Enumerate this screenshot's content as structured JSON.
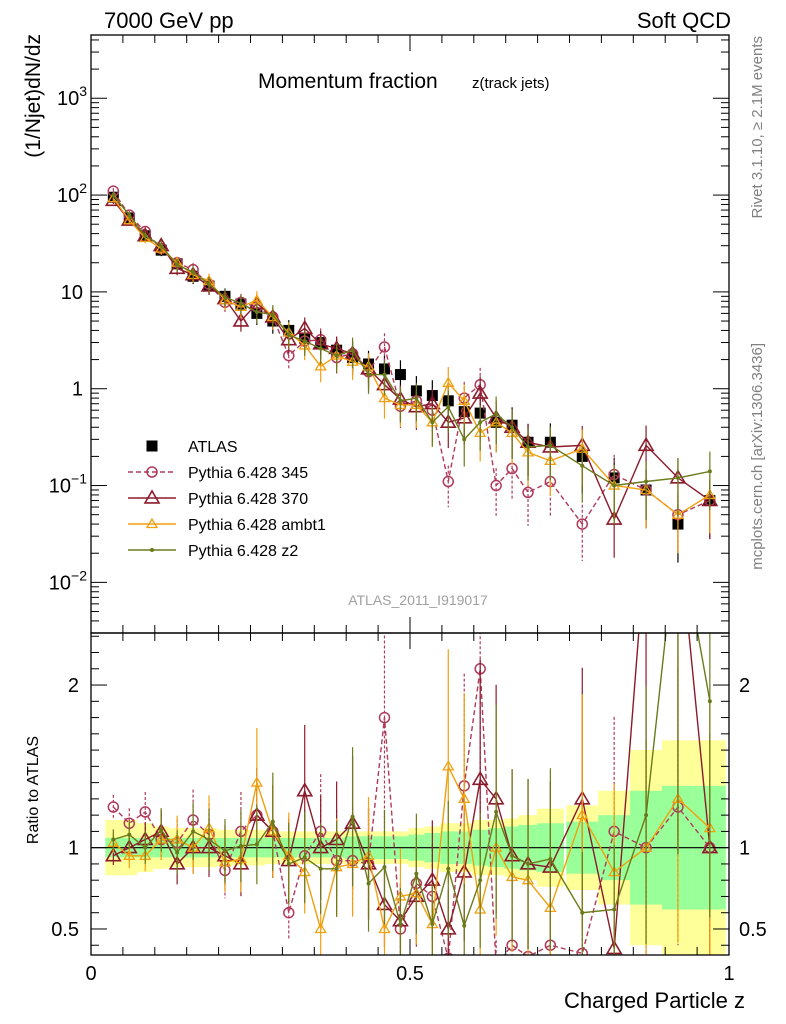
{
  "header": {
    "left": "7000 GeV pp",
    "right": "Soft QCD"
  },
  "side": {
    "rivet": "Rivet 3.1.10, ≥ 2.1M events",
    "mcplots": "mcplots.cern.ch [arXiv:1306.3436]"
  },
  "chart_data": [
    {
      "type": "scatter",
      "panel": "main",
      "title": "Momentum fraction",
      "title_sub": "z(track jets)",
      "ylabel": "(1/Njet)dN/dz",
      "xlabel": "",
      "yscale": "log",
      "xlim": [
        0,
        1
      ],
      "ylim": [
        0.003,
        4500
      ],
      "y_ticks": [
        {
          "value": 0.01,
          "label_base": "10",
          "label_exp": "−2"
        },
        {
          "value": 0.1,
          "label_base": "10",
          "label_exp": "−1"
        },
        {
          "value": 1,
          "label_base": "1",
          "label_exp": ""
        },
        {
          "value": 10,
          "label_base": "10",
          "label_exp": ""
        },
        {
          "value": 100,
          "label_base": "10",
          "label_exp": "2"
        },
        {
          "value": 1000,
          "label_base": "10",
          "label_exp": "3"
        }
      ],
      "watermark": "ATLAS_2011_I919017",
      "legend_position": "left-center",
      "x": [
        0.035,
        0.06,
        0.085,
        0.11,
        0.135,
        0.16,
        0.185,
        0.21,
        0.235,
        0.26,
        0.285,
        0.31,
        0.335,
        0.36,
        0.385,
        0.41,
        0.435,
        0.46,
        0.485,
        0.51,
        0.535,
        0.56,
        0.585,
        0.61,
        0.635,
        0.66,
        0.685,
        0.72,
        0.77,
        0.82,
        0.87,
        0.92,
        0.97
      ],
      "series": [
        {
          "name": "ATLAS",
          "color": "#000000",
          "marker": "square",
          "values": [
            95,
            58,
            38,
            27,
            19.5,
            14.5,
            11.5,
            9,
            7.5,
            6,
            5,
            4,
            3.3,
            3,
            2.5,
            2.1,
            1.8,
            1.6,
            1.4,
            0.95,
            0.85,
            0.75,
            0.58,
            0.56,
            0.45,
            0.42,
            0.28,
            0.28,
            0.2,
            0.12,
            0.09,
            0.04,
            0.07
          ]
        },
        {
          "name": "Pythia 6.428 345",
          "color": "#B03A5A",
          "marker": "circle",
          "dash": "5,3",
          "values": [
            110,
            62,
            42,
            28,
            20,
            17,
            12,
            7.8,
            7.8,
            7,
            5.5,
            2.2,
            3.1,
            3.2,
            2.1,
            2.3,
            1.5,
            2.7,
            0.66,
            0.75,
            0.6,
            0.11,
            0.8,
            1.1,
            0.1,
            0.15,
            0.085,
            0.11,
            0.04,
            0.13,
            0.09,
            0.05,
            0.07
          ]
        },
        {
          "name": "Pythia 6.428 370",
          "color": "#8B1A2B",
          "marker": "triangle",
          "values": [
            88,
            55,
            38,
            30,
            17.5,
            15,
            11.5,
            8.5,
            5,
            7.6,
            5.5,
            3.2,
            4.2,
            2.9,
            2.6,
            2.3,
            1.6,
            1.1,
            0.78,
            0.65,
            0.7,
            0.45,
            0.5,
            0.9,
            0.5,
            0.4,
            0.28,
            0.25,
            0.26,
            0.045,
            0.26,
            0.12,
            0.07
          ]
        },
        {
          "name": "Pythia 6.428 ambt1",
          "color": "#F0A010",
          "marker": "triangle-small",
          "values": [
            93,
            55,
            36,
            28,
            20,
            15,
            13,
            8.2,
            7,
            8.2,
            5.5,
            3.8,
            2.8,
            1.7,
            2.2,
            1.9,
            1.7,
            0.8,
            0.68,
            0.68,
            0.45,
            1.15,
            0.75,
            0.35,
            0.45,
            0.35,
            0.22,
            0.18,
            0.24,
            0.1,
            0.09,
            0.05,
            0.08
          ]
        },
        {
          "name": "Pythia 6.428 z2",
          "color": "#6B7A1A",
          "marker": "dot",
          "values": [
            100,
            62,
            38,
            30,
            19,
            16,
            12,
            8.8,
            7.6,
            6.2,
            5.8,
            3.6,
            3.1,
            2.6,
            2.2,
            2.5,
            1.4,
            1.4,
            0.75,
            0.8,
            0.45,
            0.65,
            0.3,
            0.45,
            0.55,
            0.4,
            0.25,
            0.26,
            0.16,
            0.1,
            0.11,
            0.12,
            0.14
          ]
        }
      ]
    },
    {
      "type": "line",
      "panel": "ratio",
      "ylabel": "Ratio to ATLAS",
      "xlabel": "Charged Particle z",
      "xlim": [
        0,
        1
      ],
      "ylim": [
        0.34,
        2.32
      ],
      "x_ticks": [
        {
          "value": 0,
          "label": "0"
        },
        {
          "value": 0.5,
          "label": "0.5"
        },
        {
          "value": 1,
          "label": "1"
        }
      ],
      "y_ticks": [
        {
          "value": 0.5,
          "label": "0.5"
        },
        {
          "value": 1,
          "label": "1"
        },
        {
          "value": 2,
          "label": "2"
        }
      ],
      "uncertainty_bands": {
        "stat_color": "#99FF99",
        "total_color": "#FFFF99",
        "green_half_width": [
          0.06,
          0.06,
          0.06,
          0.06,
          0.06,
          0.06,
          0.06,
          0.06,
          0.06,
          0.06,
          0.06,
          0.06,
          0.06,
          0.06,
          0.06,
          0.07,
          0.07,
          0.07,
          0.07,
          0.08,
          0.09,
          0.1,
          0.1,
          0.11,
          0.12,
          0.13,
          0.14,
          0.15,
          0.16,
          0.2,
          0.35,
          0.38,
          0.38
        ],
        "yellow_half_width": [
          0.17,
          0.17,
          0.15,
          0.13,
          0.12,
          0.12,
          0.12,
          0.11,
          0.11,
          0.11,
          0.1,
          0.1,
          0.1,
          0.1,
          0.1,
          0.1,
          0.1,
          0.1,
          0.1,
          0.12,
          0.13,
          0.15,
          0.15,
          0.17,
          0.17,
          0.18,
          0.2,
          0.24,
          0.26,
          0.35,
          0.6,
          0.66,
          0.66
        ]
      },
      "series": [
        {
          "name": "Pythia 6.428 345",
          "color": "#B03A5A",
          "marker": "circle",
          "dash": "5,3",
          "values": [
            1.25,
            1.15,
            1.22,
            1.05,
            1.03,
            1.17,
            1.08,
            0.86,
            1.1,
            1.2,
            1.1,
            0.6,
            0.95,
            1.1,
            0.92,
            0.92,
            0.9,
            1.8,
            0.5,
            0.78,
            0.7,
            0.32,
            1.38,
            2.1,
            0.28,
            0.4,
            0.33,
            0.4,
            0.35,
            1.1,
            1.0,
            1.25,
            1.0
          ]
        },
        {
          "name": "Pythia 6.428 370",
          "color": "#8B1A2B",
          "marker": "triangle",
          "values": [
            0.95,
            1.0,
            1.05,
            1.1,
            0.9,
            1.0,
            1.0,
            0.95,
            0.9,
            1.2,
            1.1,
            0.92,
            1.35,
            1.0,
            1.05,
            1.15,
            0.9,
            0.65,
            0.55,
            0.7,
            0.8,
            0.5,
            0.85,
            1.42,
            1.3,
            0.95,
            0.9,
            0.88,
            1.3,
            0.38,
            2.9,
            3.0,
            1.0
          ]
        },
        {
          "name": "Pythia 6.428 ambt1",
          "color": "#F0A010",
          "marker": "triangle-small",
          "values": [
            1.03,
            0.95,
            0.95,
            1.05,
            1.05,
            1.0,
            1.12,
            0.91,
            0.93,
            1.4,
            1.1,
            0.95,
            0.85,
            0.5,
            0.88,
            0.9,
            0.95,
            0.5,
            0.7,
            0.72,
            0.53,
            1.5,
            1.3,
            0.62,
            1.0,
            0.82,
            0.8,
            0.63,
            1.2,
            0.85,
            1.0,
            1.3,
            1.12
          ]
        },
        {
          "name": "Pythia 6.428 z2",
          "color": "#6B7A1A",
          "marker": "dot",
          "values": [
            1.05,
            1.08,
            1.0,
            1.11,
            0.97,
            1.1,
            1.05,
            0.98,
            1.01,
            1.02,
            1.16,
            0.9,
            0.94,
            0.87,
            0.87,
            1.19,
            0.78,
            0.88,
            0.53,
            0.84,
            0.53,
            0.87,
            0.52,
            0.8,
            1.22,
            0.95,
            0.9,
            0.93,
            0.6,
            0.62,
            1.2,
            3.0,
            1.9
          ]
        }
      ]
    }
  ]
}
